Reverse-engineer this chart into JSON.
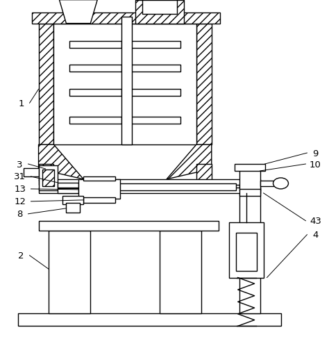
{
  "background_color": "#ffffff",
  "line_color": "#000000",
  "fig_width": 4.74,
  "fig_height": 4.89,
  "label_fontsize": 9.5
}
